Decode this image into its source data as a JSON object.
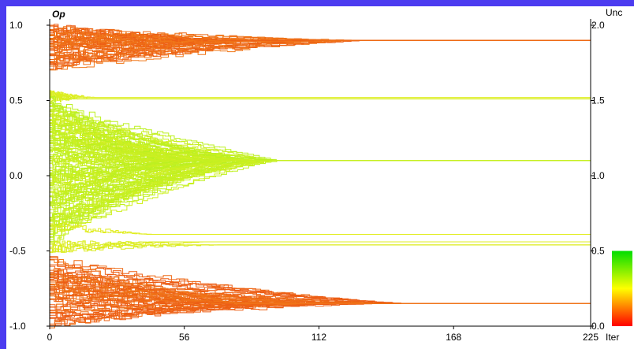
{
  "chart_data": {
    "type": "line",
    "title": "",
    "ylabel": "Op",
    "xlabel": "Iter",
    "right_axis_label": "Unc",
    "xlim": [
      0,
      225
    ],
    "ylim": [
      -1.0,
      1.0
    ],
    "right_axis_lim": [
      0.0,
      2.0
    ],
    "x_ticks": [
      "0",
      "56",
      "112",
      "168",
      "225"
    ],
    "y_ticks": [
      "1.0",
      "0.5",
      "0.0",
      "-0.5",
      "-1.0"
    ],
    "right_axis_ticks": [
      "2.0",
      "1.5",
      "1.0",
      "0.5",
      "0.0"
    ],
    "colorbar": {
      "range": [
        0.0,
        0.5
      ],
      "low_color": "#ff0000",
      "mid_color": "#ffff00",
      "high_color": "#00dd00"
    },
    "grid": false,
    "legend": "none",
    "clusters": [
      {
        "name": "",
        "converged_opinion": 0.9,
        "converged_at_iter": 135,
        "start_range": [
          0.7,
          1.0
        ],
        "uncertainty": 0.2,
        "color": "#f07818",
        "line_count": 55
      },
      {
        "name": "",
        "converged_opinion": 0.52,
        "converged_at_iter": 20,
        "start_range": [
          0.5,
          0.55
        ],
        "uncertainty": 0.75,
        "color": "#d2ee20",
        "line_count": 3
      },
      {
        "name": "",
        "converged_opinion": 0.51,
        "converged_at_iter": 20,
        "start_range": [
          0.5,
          0.53
        ],
        "uncertainty": 0.75,
        "color": "#d2ee20",
        "line_count": 2
      },
      {
        "name": "",
        "converged_opinion": 0.1,
        "converged_at_iter": 95,
        "start_range": [
          -0.45,
          0.5
        ],
        "uncertainty": 0.8,
        "color": "#b8f020",
        "line_count": 130
      },
      {
        "name": "",
        "converged_opinion": -0.39,
        "converged_at_iter": 60,
        "start_range": [
          -0.35,
          -0.3
        ],
        "uncertainty": 0.7,
        "color": "#d6ec20",
        "line_count": 2
      },
      {
        "name": "",
        "converged_opinion": -0.44,
        "converged_at_iter": 75,
        "start_range": [
          -0.5,
          -0.4
        ],
        "uncertainty": 0.7,
        "color": "#d6ec20",
        "line_count": 3
      },
      {
        "name": "",
        "converged_opinion": -0.46,
        "converged_at_iter": 80,
        "start_range": [
          -0.5,
          -0.45
        ],
        "uncertainty": 0.7,
        "color": "#d6ec20",
        "line_count": 3
      },
      {
        "name": "",
        "converged_opinion": -0.85,
        "converged_at_iter": 150,
        "start_range": [
          -1.0,
          -0.55
        ],
        "uncertainty": 0.2,
        "color": "#f07818",
        "line_count": 60
      }
    ]
  }
}
